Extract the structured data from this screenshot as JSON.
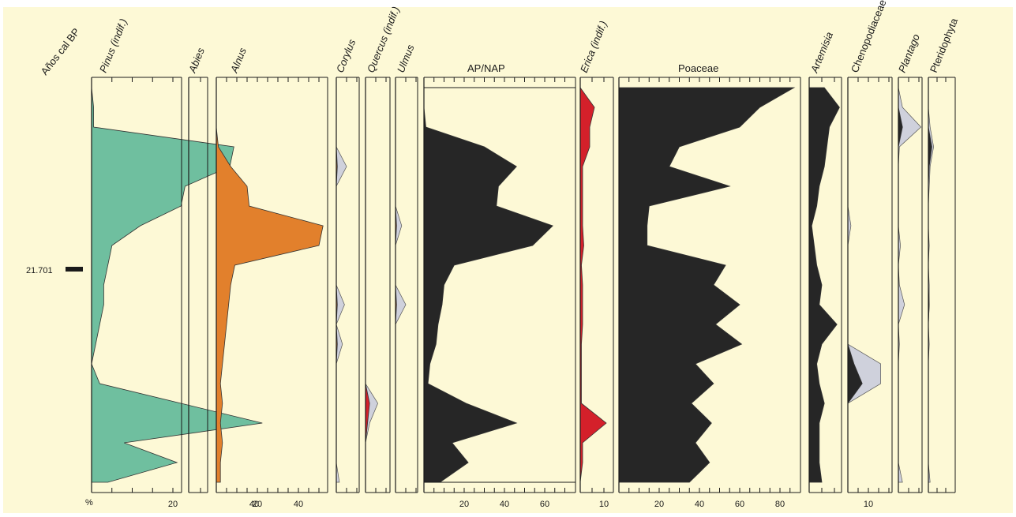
{
  "colors": {
    "background": "#fdf9d6",
    "green": "#6fbf9f",
    "orange": "#e2802c",
    "black": "#262626",
    "red": "#d4202a",
    "grey": "#cfd1dc",
    "axis": "#1a1a1a"
  },
  "chart_data": {
    "type": "area",
    "ylabel": "Años cal BP",
    "y_marker": "21.701",
    "x_unit_label": "%",
    "depth_samples": 20,
    "series": [
      {
        "name": "Pinus (indif.)",
        "ticklabels": [
          "20",
          "40"
        ],
        "values": [
          0,
          0.5,
          0.5,
          35,
          34,
          23,
          22,
          12,
          5,
          4,
          3,
          3,
          2,
          1,
          0,
          2,
          22,
          42,
          8,
          21,
          4
        ],
        "exaggerated": []
      },
      {
        "name": "Abies",
        "ticklabels": [],
        "values": [
          0,
          0,
          0,
          0,
          2.5,
          0,
          0,
          0,
          0,
          0,
          0,
          0,
          0,
          0,
          0,
          0,
          0,
          0,
          0,
          0,
          0
        ],
        "exaggerated": []
      },
      {
        "name": "Alnus",
        "ticklabels": [
          "20",
          "40"
        ],
        "values": [
          0,
          0,
          0,
          1,
          7,
          15,
          16,
          52,
          50,
          9,
          7,
          6,
          5,
          4,
          3,
          2,
          3,
          2,
          3,
          2,
          2
        ],
        "exaggerated": []
      },
      {
        "name": "Corylus",
        "ticklabels": [],
        "values": [
          0,
          0,
          0,
          0,
          0.5,
          0,
          0,
          0,
          0,
          0,
          0,
          0.5,
          0,
          0.5,
          0,
          0,
          0,
          0,
          0,
          0,
          0
        ],
        "exaggerated": [
          0,
          0,
          0,
          0,
          5,
          0,
          0,
          0,
          0,
          0,
          0,
          4,
          0,
          3,
          0,
          0,
          0,
          0,
          0,
          0,
          1.5
        ]
      },
      {
        "name": "Quercus (indif.)",
        "ticklabels": [],
        "values": [
          0,
          0,
          0,
          0,
          0,
          0,
          0,
          0,
          0,
          0,
          0,
          0,
          0,
          0,
          0,
          0,
          2,
          1,
          0,
          0,
          0
        ],
        "exaggerated": [
          0,
          0,
          0,
          0,
          0,
          0,
          0,
          0,
          0,
          0,
          0,
          0,
          0,
          0,
          0,
          0,
          6,
          2,
          0,
          0,
          0
        ]
      },
      {
        "name": "Ulmus",
        "ticklabels": [],
        "values": [
          0,
          0,
          0,
          0,
          0,
          0,
          0,
          0.5,
          0,
          0,
          0,
          0.5,
          0,
          0,
          0,
          0,
          0,
          0,
          0,
          0,
          0
        ],
        "exaggerated": [
          0,
          0,
          0,
          0,
          0,
          0,
          0,
          3,
          0,
          0,
          0,
          5,
          0,
          0,
          0,
          0,
          0,
          0,
          0,
          0,
          0
        ]
      },
      {
        "name": "AP/NAP",
        "ticklabels": [
          "20",
          "40",
          "60"
        ],
        "values": [
          0,
          0,
          1,
          30,
          46,
          37,
          36,
          64,
          54,
          15,
          10,
          9,
          7,
          6,
          3,
          2,
          21,
          46,
          14,
          22,
          8
        ],
        "exaggerated": []
      },
      {
        "name": "Erica (indif.)",
        "ticklabels": [
          "10"
        ],
        "values": [
          0,
          6,
          4,
          4,
          1,
          1,
          1,
          1,
          1.5,
          0.5,
          1,
          1,
          1,
          0.5,
          0.5,
          0.5,
          0.5,
          11,
          1,
          1,
          0
        ],
        "exaggerated": []
      },
      {
        "name": "Poaceae",
        "ticklabels": [
          "20",
          "40",
          "60",
          "80"
        ],
        "values": [
          87,
          70,
          60,
          30,
          25,
          55,
          15,
          14,
          14,
          53,
          47,
          60,
          48,
          61,
          38,
          47,
          36,
          46,
          38,
          45,
          35
        ],
        "exaggerated": []
      },
      {
        "name": "Artemisia",
        "ticklabels": [],
        "values": [
          6,
          12,
          8,
          7,
          6,
          4,
          3,
          1,
          2,
          3,
          5,
          4,
          11,
          5,
          3,
          4,
          6,
          4,
          4,
          4,
          5
        ],
        "exaggerated": []
      },
      {
        "name": "Chenopodiaceae",
        "ticklabels": [
          "10"
        ],
        "values": [
          0,
          0,
          0,
          0,
          0,
          0,
          0,
          0,
          0,
          0,
          0,
          0,
          0,
          0,
          3,
          7,
          0,
          0,
          0,
          0,
          0
        ],
        "exaggerated": [
          0,
          0,
          0,
          0,
          0,
          0,
          0,
          1.5,
          0,
          0,
          0,
          0,
          0,
          0,
          16,
          16,
          0,
          0,
          0,
          0,
          0
        ]
      },
      {
        "name": "Plantago",
        "ticklabels": [],
        "values": [
          0,
          0,
          2,
          0,
          0,
          0,
          0,
          0,
          0,
          0,
          0,
          0,
          0,
          0,
          0,
          0,
          0,
          0,
          0,
          0,
          0
        ],
        "exaggerated": [
          0,
          2,
          11,
          0.5,
          0,
          0,
          0,
          0,
          1,
          0,
          0.5,
          3,
          0,
          0.5,
          0,
          0,
          0,
          0,
          0,
          0,
          2
        ]
      },
      {
        "name": "Pteridophyta",
        "ticklabels": [],
        "values": [
          0,
          0,
          0,
          2,
          0.5,
          0,
          0,
          0,
          0,
          0,
          0,
          0.5,
          0,
          0,
          0,
          0,
          0,
          0,
          0,
          0,
          0
        ],
        "exaggerated": [
          0,
          0,
          1,
          3,
          1,
          0.5,
          0,
          0,
          0.5,
          0,
          0.5,
          0.5,
          0,
          0.5,
          0,
          0,
          0,
          0,
          0,
          0,
          1
        ]
      }
    ]
  }
}
